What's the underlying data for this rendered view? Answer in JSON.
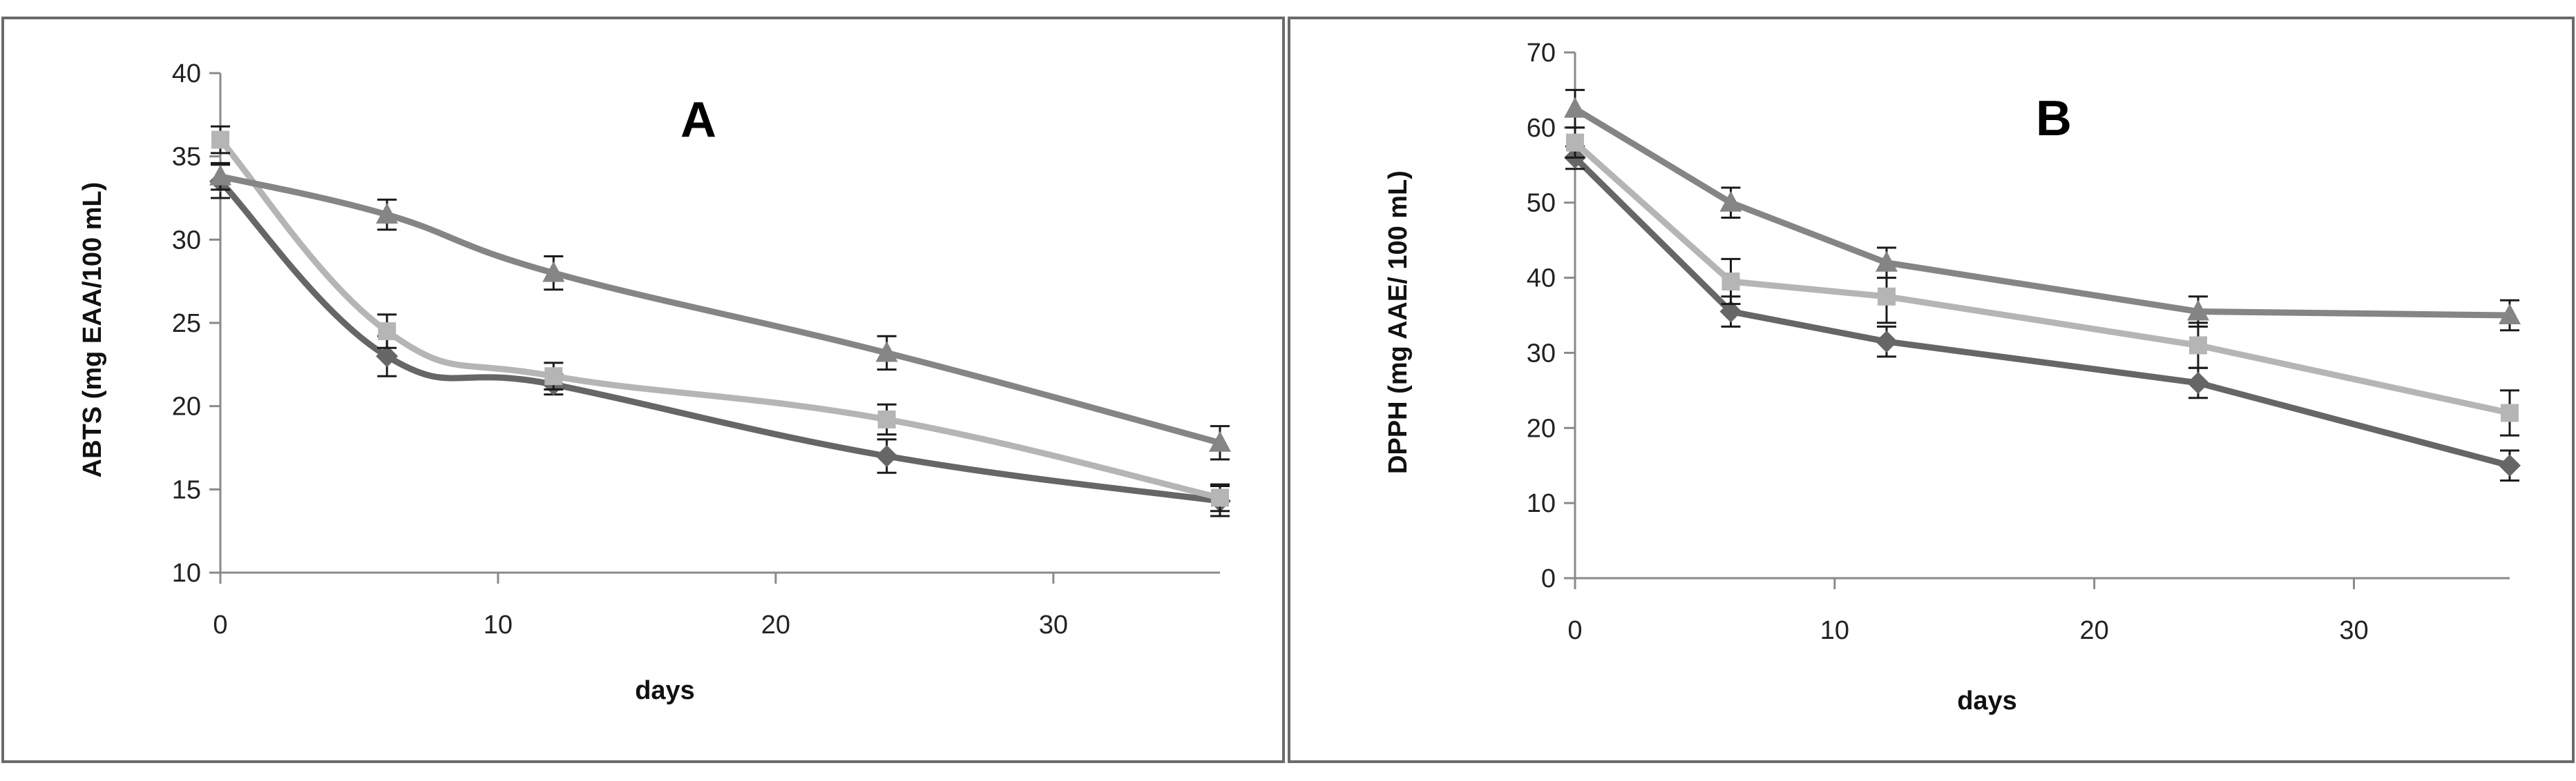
{
  "chart_data": [
    {
      "type": "line",
      "title": "A",
      "xlabel": "days",
      "ylabel": "ABTS  (mg EAA/100 mL)",
      "xlim": [
        0,
        36
      ],
      "ylim": [
        10,
        40
      ],
      "xticks": [
        0,
        10,
        20,
        30
      ],
      "yticks": [
        10,
        15,
        20,
        25,
        30,
        35,
        40
      ],
      "x_tick_labels": [
        "0",
        "10",
        "20",
        "30"
      ],
      "y_tick_labels": [
        "10",
        "15",
        "20",
        "25",
        "30",
        "35",
        "40"
      ],
      "grid": false,
      "legend": "none",
      "x": [
        0,
        6,
        12,
        24,
        36
      ],
      "series": [
        {
          "marker": "diamond",
          "color": "#666666",
          "values": [
            33.5,
            23.0,
            21.3,
            17.0,
            14.3
          ],
          "errors": [
            1.0,
            1.2,
            0.6,
            1.0,
            0.9
          ]
        },
        {
          "marker": "square",
          "color": "#b5b5b5",
          "values": [
            36.0,
            24.5,
            21.8,
            19.2,
            14.5
          ],
          "errors": [
            0.8,
            1.0,
            0.8,
            0.9,
            0.8
          ]
        },
        {
          "marker": "triangle",
          "color": "#858585",
          "values": [
            33.8,
            31.5,
            28.0,
            23.2,
            17.8
          ],
          "errors": [
            0.8,
            0.9,
            1.0,
            1.0,
            1.0
          ]
        }
      ]
    },
    {
      "type": "line",
      "title": "B",
      "xlabel": "days",
      "ylabel": "DPPH  (mg AAE/ 100 mL)",
      "xlim": [
        0,
        36
      ],
      "ylim": [
        0,
        70
      ],
      "xticks": [
        0,
        10,
        20,
        30
      ],
      "yticks": [
        0,
        10,
        20,
        30,
        40,
        50,
        60,
        70
      ],
      "x_tick_labels": [
        "0",
        "10",
        "20",
        "30"
      ],
      "y_tick_labels": [
        "0",
        "10",
        "20",
        "30",
        "40",
        "50",
        "60",
        "70"
      ],
      "grid": false,
      "legend": "none",
      "x": [
        0,
        6,
        12,
        24,
        36
      ],
      "series": [
        {
          "marker": "diamond",
          "color": "#666666",
          "values": [
            56.0,
            35.5,
            31.5,
            26.0,
            15.0
          ],
          "errors": [
            1.5,
            2.0,
            2.0,
            2.0,
            2.0
          ]
        },
        {
          "marker": "square",
          "color": "#b5b5b5",
          "values": [
            58.0,
            39.5,
            37.5,
            31.0,
            22.0
          ],
          "errors": [
            2.0,
            3.0,
            3.5,
            3.0,
            3.0
          ]
        },
        {
          "marker": "triangle",
          "color": "#858585",
          "values": [
            62.5,
            50.0,
            42.0,
            35.5,
            35.0
          ],
          "errors": [
            2.5,
            2.0,
            2.0,
            2.0,
            2.0
          ]
        }
      ]
    }
  ]
}
